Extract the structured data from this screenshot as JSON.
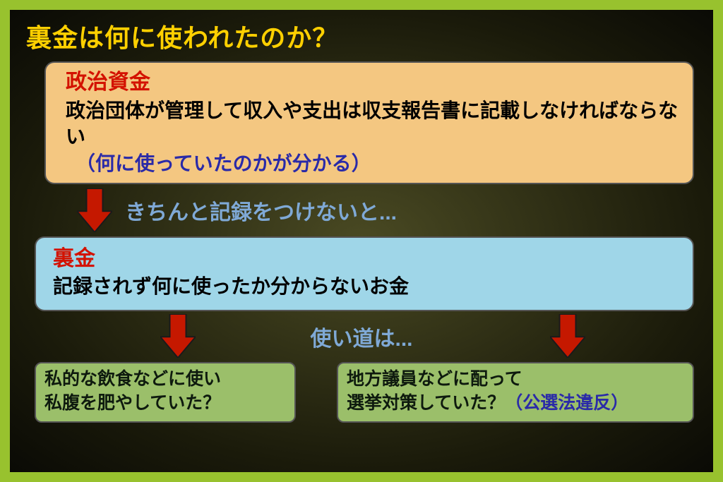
{
  "colors": {
    "frame_border": "#98c22e",
    "title_color": "#ffd000",
    "box1_bg": "#f4c781",
    "box1_header": "#d31200",
    "box1_body": "#000000",
    "box1_note": "#2a2aa8",
    "arrow_fill": "#c51800",
    "arrow_stroke": "#1a1a1a",
    "connector_text": "#7fa9d6",
    "box2_bg": "#9fd6e8",
    "box2_header": "#d31200",
    "box2_body": "#000000",
    "box3_bg": "#9bbf6a",
    "box3_text": "#0e1a0e",
    "box4_bg": "#9bbf6a",
    "box4_text": "#0e1a0e",
    "violation_text": "#2a2aa8"
  },
  "title": "裏金は何に使われたのか？",
  "box1": {
    "header": "政治資金",
    "body": "政治団体が管理して収入や支出は収支報告書に記載しなければならない",
    "note": "（何に使っていたのかが分かる）"
  },
  "connector1": "きちんと記録をつけないと...",
  "box2": {
    "header": "裏金",
    "body": "記録されず何に使ったか分からないお金"
  },
  "connector2": "使い道は...",
  "box3": {
    "line1": "私的な飲食などに使い",
    "line2": "私腹を肥やしていた？"
  },
  "box4": {
    "line1": "地方議員などに配って",
    "line2_a": "選挙対策していた？",
    "line2_b": "（公選法違反）"
  },
  "arrow": {
    "width": 50,
    "height": 62
  }
}
